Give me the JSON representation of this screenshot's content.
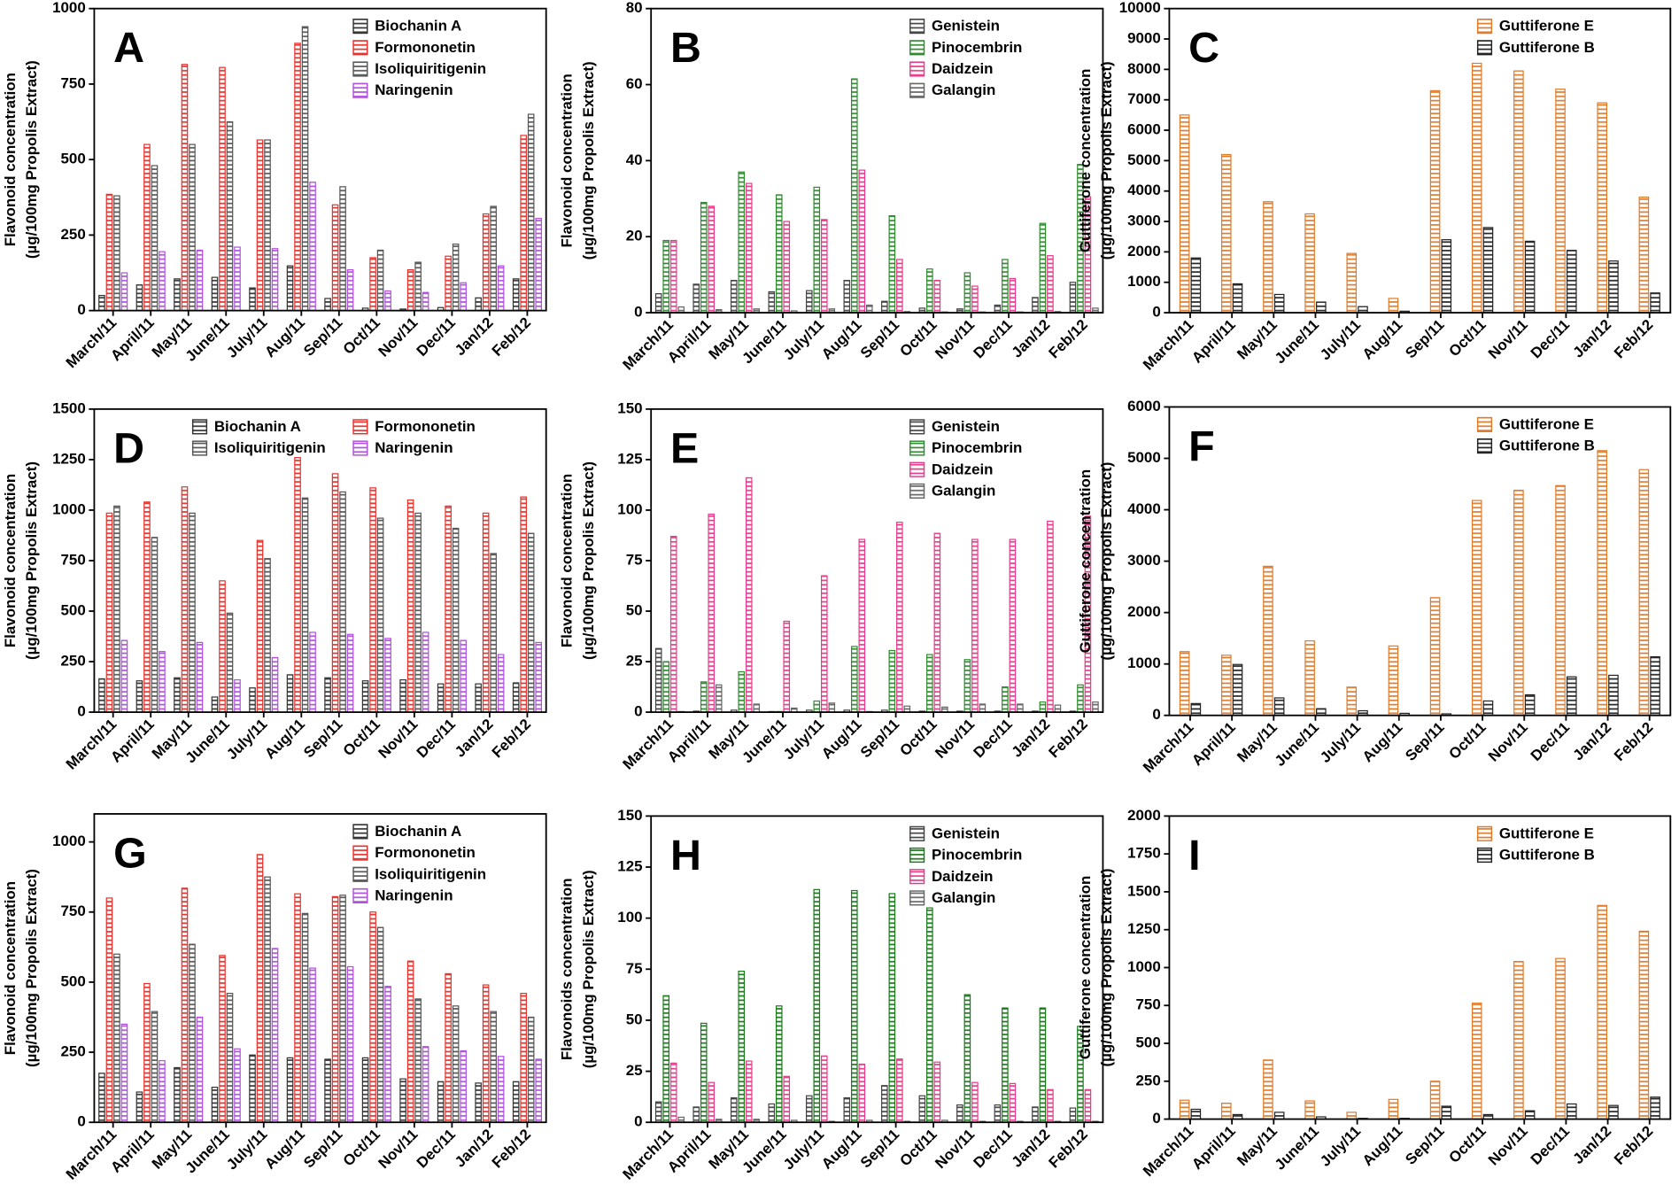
{
  "chart_data": [
    {
      "type": "bar",
      "title": "A",
      "y_label": [
        "Flavonoid concentration",
        "(µg/100mg Propolis Extract)"
      ],
      "categories": [
        "March/11",
        "April/11",
        "May/11",
        "June/11",
        "July/11",
        "Aug/11",
        "Sep/11",
        "Oct/11",
        "Nov/11",
        "Dec/11",
        "Jan/12",
        "Feb/12"
      ],
      "series": [
        {
          "name": "Biochanin A",
          "color": "#333333",
          "values": [
            50,
            85,
            105,
            110,
            75,
            148,
            40,
            8,
            5,
            10,
            42,
            105
          ]
        },
        {
          "name": "Formononetin",
          "color": "#e8302a",
          "values": [
            385,
            550,
            815,
            805,
            565,
            885,
            350,
            175,
            135,
            180,
            320,
            580
          ]
        },
        {
          "name": "Isoliquiritigenin",
          "color": "#555555",
          "values": [
            380,
            480,
            550,
            625,
            565,
            940,
            410,
            200,
            160,
            220,
            345,
            650
          ]
        },
        {
          "name": "Naringenin",
          "color": "#b04fe0",
          "values": [
            125,
            195,
            200,
            210,
            205,
            425,
            135,
            65,
            60,
            92,
            148,
            305
          ]
        }
      ],
      "ylim": [
        0,
        1000
      ],
      "yticks": [
        0,
        250,
        500,
        750,
        1000
      ],
      "legend": "top-right",
      "legend_columns": 1
    },
    {
      "type": "bar",
      "title": "B",
      "y_label": [
        "Flavonoid concentration",
        "(µg/100mg Propolis Extract)"
      ],
      "categories": [
        "March/11",
        "April/11",
        "May/11",
        "June/11",
        "July/11",
        "Aug/11",
        "Sep/11",
        "Oct/11",
        "Nov/11",
        "Dec/11",
        "Jan/12",
        "Feb/12"
      ],
      "series": [
        {
          "name": "Genistein",
          "color": "#444444",
          "values": [
            5,
            7.5,
            8.5,
            5.5,
            5.8,
            8.5,
            3,
            1.2,
            1,
            2,
            4,
            8
          ]
        },
        {
          "name": "Pinocembrin",
          "color": "#2e8b2e",
          "values": [
            19,
            29,
            37,
            31,
            33,
            61.5,
            25.5,
            11.5,
            10.5,
            14,
            23.5,
            39
          ]
        },
        {
          "name": "Daidzein",
          "color": "#e83a8a",
          "values": [
            19,
            28,
            34,
            24,
            24.5,
            37.5,
            14,
            8.5,
            7,
            9,
            15,
            30.5
          ]
        },
        {
          "name": "Galangin",
          "color": "#666666",
          "values": [
            1.5,
            0.8,
            1,
            0.5,
            1,
            2,
            0.3,
            0.2,
            0.2,
            0.2,
            0.3,
            1.2
          ]
        }
      ],
      "ylim": [
        0,
        80
      ],
      "yticks": [
        0,
        20,
        40,
        60,
        80
      ],
      "legend": "top-right",
      "legend_columns": 1
    },
    {
      "type": "bar",
      "title": "C",
      "y_label": [
        "Guttiferone concentration",
        "(µg/100mg Propolis Extract)"
      ],
      "categories": [
        "March/11",
        "April/11",
        "May/11",
        "June/11",
        "July/11",
        "Aug/11",
        "Sep/11",
        "Oct/11",
        "Nov/11",
        "Dec/11",
        "Jan/12",
        "Feb/12"
      ],
      "series": [
        {
          "name": "Guttiferone E",
          "color": "#e07b2a",
          "values": [
            6500,
            5200,
            3650,
            3250,
            1950,
            470,
            7300,
            8200,
            7950,
            7350,
            6900,
            3800
          ]
        },
        {
          "name": "Guttiferone B",
          "color": "#222222",
          "values": [
            1800,
            950,
            600,
            350,
            200,
            50,
            2400,
            2800,
            2350,
            2050,
            1700,
            650
          ]
        }
      ],
      "ylim": [
        0,
        10000
      ],
      "yticks": [
        0,
        1000,
        2000,
        3000,
        4000,
        5000,
        6000,
        7000,
        8000,
        9000,
        10000
      ],
      "legend": "top-right",
      "legend_columns": 1
    },
    {
      "type": "bar",
      "title": "D",
      "y_label": [
        "Flavonoid concentration",
        "(µg/100mg Propolis Extract)"
      ],
      "categories": [
        "March/11",
        "April/11",
        "May/11",
        "June/11",
        "July/11",
        "Aug/11",
        "Sep/11",
        "Oct/11",
        "Nov/11",
        "Dec/11",
        "Jan/12",
        "Feb/12"
      ],
      "series": [
        {
          "name": "Biochanin A",
          "color": "#333333",
          "values": [
            165,
            155,
            170,
            75,
            120,
            185,
            170,
            155,
            160,
            140,
            140,
            145
          ]
        },
        {
          "name": "Formononetin",
          "color": "#e8302a",
          "values": [
            985,
            1040,
            1115,
            650,
            850,
            1260,
            1180,
            1110,
            1050,
            1020,
            985,
            1065
          ]
        },
        {
          "name": "Isoliquiritigenin",
          "color": "#555555",
          "values": [
            1020,
            865,
            985,
            490,
            760,
            1060,
            1090,
            960,
            985,
            910,
            785,
            885
          ]
        },
        {
          "name": "Naringenin",
          "color": "#b04fe0",
          "values": [
            355,
            300,
            345,
            160,
            270,
            395,
            385,
            365,
            395,
            355,
            285,
            345
          ]
        }
      ],
      "ylim": [
        0,
        1500
      ],
      "yticks": [
        0,
        250,
        500,
        750,
        1000,
        1250,
        1500
      ],
      "legend": "top-right",
      "legend_columns": 2
    },
    {
      "type": "bar",
      "title": "E",
      "y_label": [
        "Flavonoid concentration",
        "(µg/100mg Propolis Extract)"
      ],
      "categories": [
        "March/11",
        "April/11",
        "May/11",
        "June/11",
        "July/11",
        "Aug/11",
        "Sep/11",
        "Oct/11",
        "Nov/11",
        "Dec/11",
        "Jan/12",
        "Feb/12"
      ],
      "series": [
        {
          "name": "Genistein",
          "color": "#444444",
          "values": [
            31.5,
            0.5,
            1,
            0.3,
            1,
            1,
            1,
            0.5,
            0.5,
            0.5,
            0.5,
            0.5
          ]
        },
        {
          "name": "Pinocembrin",
          "color": "#2e8b2e",
          "values": [
            25,
            15,
            20,
            0.3,
            5.5,
            32.5,
            30.5,
            28.5,
            26,
            12.5,
            5,
            13.5
          ]
        },
        {
          "name": "Daidzein",
          "color": "#e83a8a",
          "values": [
            87,
            98,
            116,
            45,
            67.5,
            85.5,
            94,
            88.5,
            85.5,
            85.5,
            94.5,
            97
          ]
        },
        {
          "name": "Galangin",
          "color": "#666666",
          "values": [
            0.3,
            13.5,
            4,
            2,
            4.5,
            0.3,
            3,
            2.5,
            4,
            4,
            3.5,
            5
          ]
        }
      ],
      "ylim": [
        0,
        150
      ],
      "yticks": [
        0,
        25,
        50,
        75,
        100,
        125,
        150
      ],
      "legend": "top-right",
      "legend_columns": 1
    },
    {
      "type": "bar",
      "title": "F",
      "y_label": [
        "Guttiferone concentration",
        "(µg/100mg Propolis Extract)"
      ],
      "categories": [
        "March/11",
        "April/11",
        "May/11",
        "June/11",
        "July/11",
        "Aug/11",
        "Sep/11",
        "Oct/11",
        "Nov/11",
        "Dec/11",
        "Jan/12",
        "Feb/12"
      ],
      "series": [
        {
          "name": "Guttiferone E",
          "color": "#e07b2a",
          "values": [
            1240,
            1170,
            2900,
            1450,
            550,
            1350,
            2290,
            4180,
            4380,
            4470,
            5150,
            4780
          ]
        },
        {
          "name": "Guttiferone B",
          "color": "#222222",
          "values": [
            230,
            990,
            340,
            130,
            90,
            40,
            30,
            280,
            400,
            750,
            780,
            1140
          ]
        }
      ],
      "ylim": [
        0,
        6000
      ],
      "yticks": [
        0,
        1000,
        2000,
        3000,
        4000,
        5000,
        6000
      ],
      "legend": "top-right",
      "legend_columns": 1
    },
    {
      "type": "bar",
      "title": "G",
      "y_label": [
        "Flavonoid concentration",
        "(µg/100mg Propolis Extract)"
      ],
      "categories": [
        "March/11",
        "April/11",
        "May/11",
        "June/11",
        "July/11",
        "Aug/11",
        "Sep/11",
        "Oct/11",
        "Nov/11",
        "Dec/11",
        "Jan/12",
        "Feb/12"
      ],
      "series": [
        {
          "name": "Biochanin A",
          "color": "#333333",
          "values": [
            175,
            108,
            195,
            125,
            240,
            230,
            225,
            230,
            155,
            145,
            140,
            145
          ]
        },
        {
          "name": "Formononetin",
          "color": "#e8302a",
          "values": [
            800,
            495,
            835,
            595,
            955,
            815,
            805,
            750,
            575,
            530,
            490,
            460
          ]
        },
        {
          "name": "Isoliquiritigenin",
          "color": "#555555",
          "values": [
            600,
            395,
            635,
            460,
            875,
            745,
            810,
            695,
            440,
            415,
            395,
            375
          ]
        },
        {
          "name": "Naringenin",
          "color": "#b04fe0",
          "values": [
            350,
            220,
            375,
            262,
            620,
            550,
            555,
            485,
            270,
            255,
            235,
            225
          ]
        }
      ],
      "ylim": [
        0,
        1100
      ],
      "yticks": [
        0,
        250,
        500,
        750,
        1000
      ],
      "legend": "top-right",
      "legend_columns": 1
    },
    {
      "type": "bar",
      "title": "H",
      "y_label": [
        "Flavonoids concentration",
        "(µg/100mg Propolis Extract)"
      ],
      "categories": [
        "March/11",
        "April/11",
        "May/11",
        "June/11",
        "July/11",
        "Aug/11",
        "Sep/11",
        "Oct/11",
        "Nov/11",
        "Dec/11",
        "Jan/12",
        "Feb/12"
      ],
      "series": [
        {
          "name": "Genistein",
          "color": "#444444",
          "values": [
            10,
            7.5,
            12,
            9,
            13,
            12,
            18,
            13,
            8.5,
            8.5,
            7.5,
            7
          ]
        },
        {
          "name": "Pinocembrin",
          "color": "#1a7a1a",
          "values": [
            62,
            48.5,
            74,
            57,
            114,
            113.5,
            112,
            105,
            62.5,
            56,
            56,
            47
          ]
        },
        {
          "name": "Daidzein",
          "color": "#e83a8a",
          "values": [
            29,
            19.5,
            30,
            22.5,
            32.5,
            28.5,
            31,
            29.5,
            19.5,
            19,
            16,
            16
          ]
        },
        {
          "name": "Galangin",
          "color": "#666666",
          "values": [
            2.5,
            1.5,
            1.5,
            1,
            0.5,
            1,
            0.5,
            1,
            0.5,
            0.5,
            0.5,
            0.5
          ]
        }
      ],
      "ylim": [
        0,
        150
      ],
      "yticks": [
        0,
        25,
        50,
        75,
        100,
        125,
        150
      ],
      "legend": "top-right",
      "legend_columns": 1
    },
    {
      "type": "bar",
      "title": "I",
      "y_label": [
        "Guttiferone concentration",
        "(µg/100mg Propolis Extract)"
      ],
      "categories": [
        "March/11",
        "April/11",
        "May/11",
        "June/11",
        "July/11",
        "Aug/11",
        "Sep/11",
        "Oct/11",
        "Nov/11",
        "Dec/11",
        "Jan/12",
        "Feb/12"
      ],
      "series": [
        {
          "name": "Guttiferone E",
          "color": "#e07b2a",
          "values": [
            125,
            105,
            390,
            120,
            45,
            130,
            250,
            765,
            1040,
            1060,
            1410,
            1240
          ]
        },
        {
          "name": "Guttiferone B",
          "color": "#222222",
          "values": [
            65,
            30,
            45,
            15,
            5,
            5,
            85,
            30,
            55,
            100,
            90,
            145
          ]
        }
      ],
      "ylim": [
        0,
        2000
      ],
      "yticks": [
        0,
        250,
        500,
        750,
        1000,
        1250,
        1500,
        1750,
        2000
      ],
      "legend": "top-right",
      "legend_columns": 1
    }
  ]
}
